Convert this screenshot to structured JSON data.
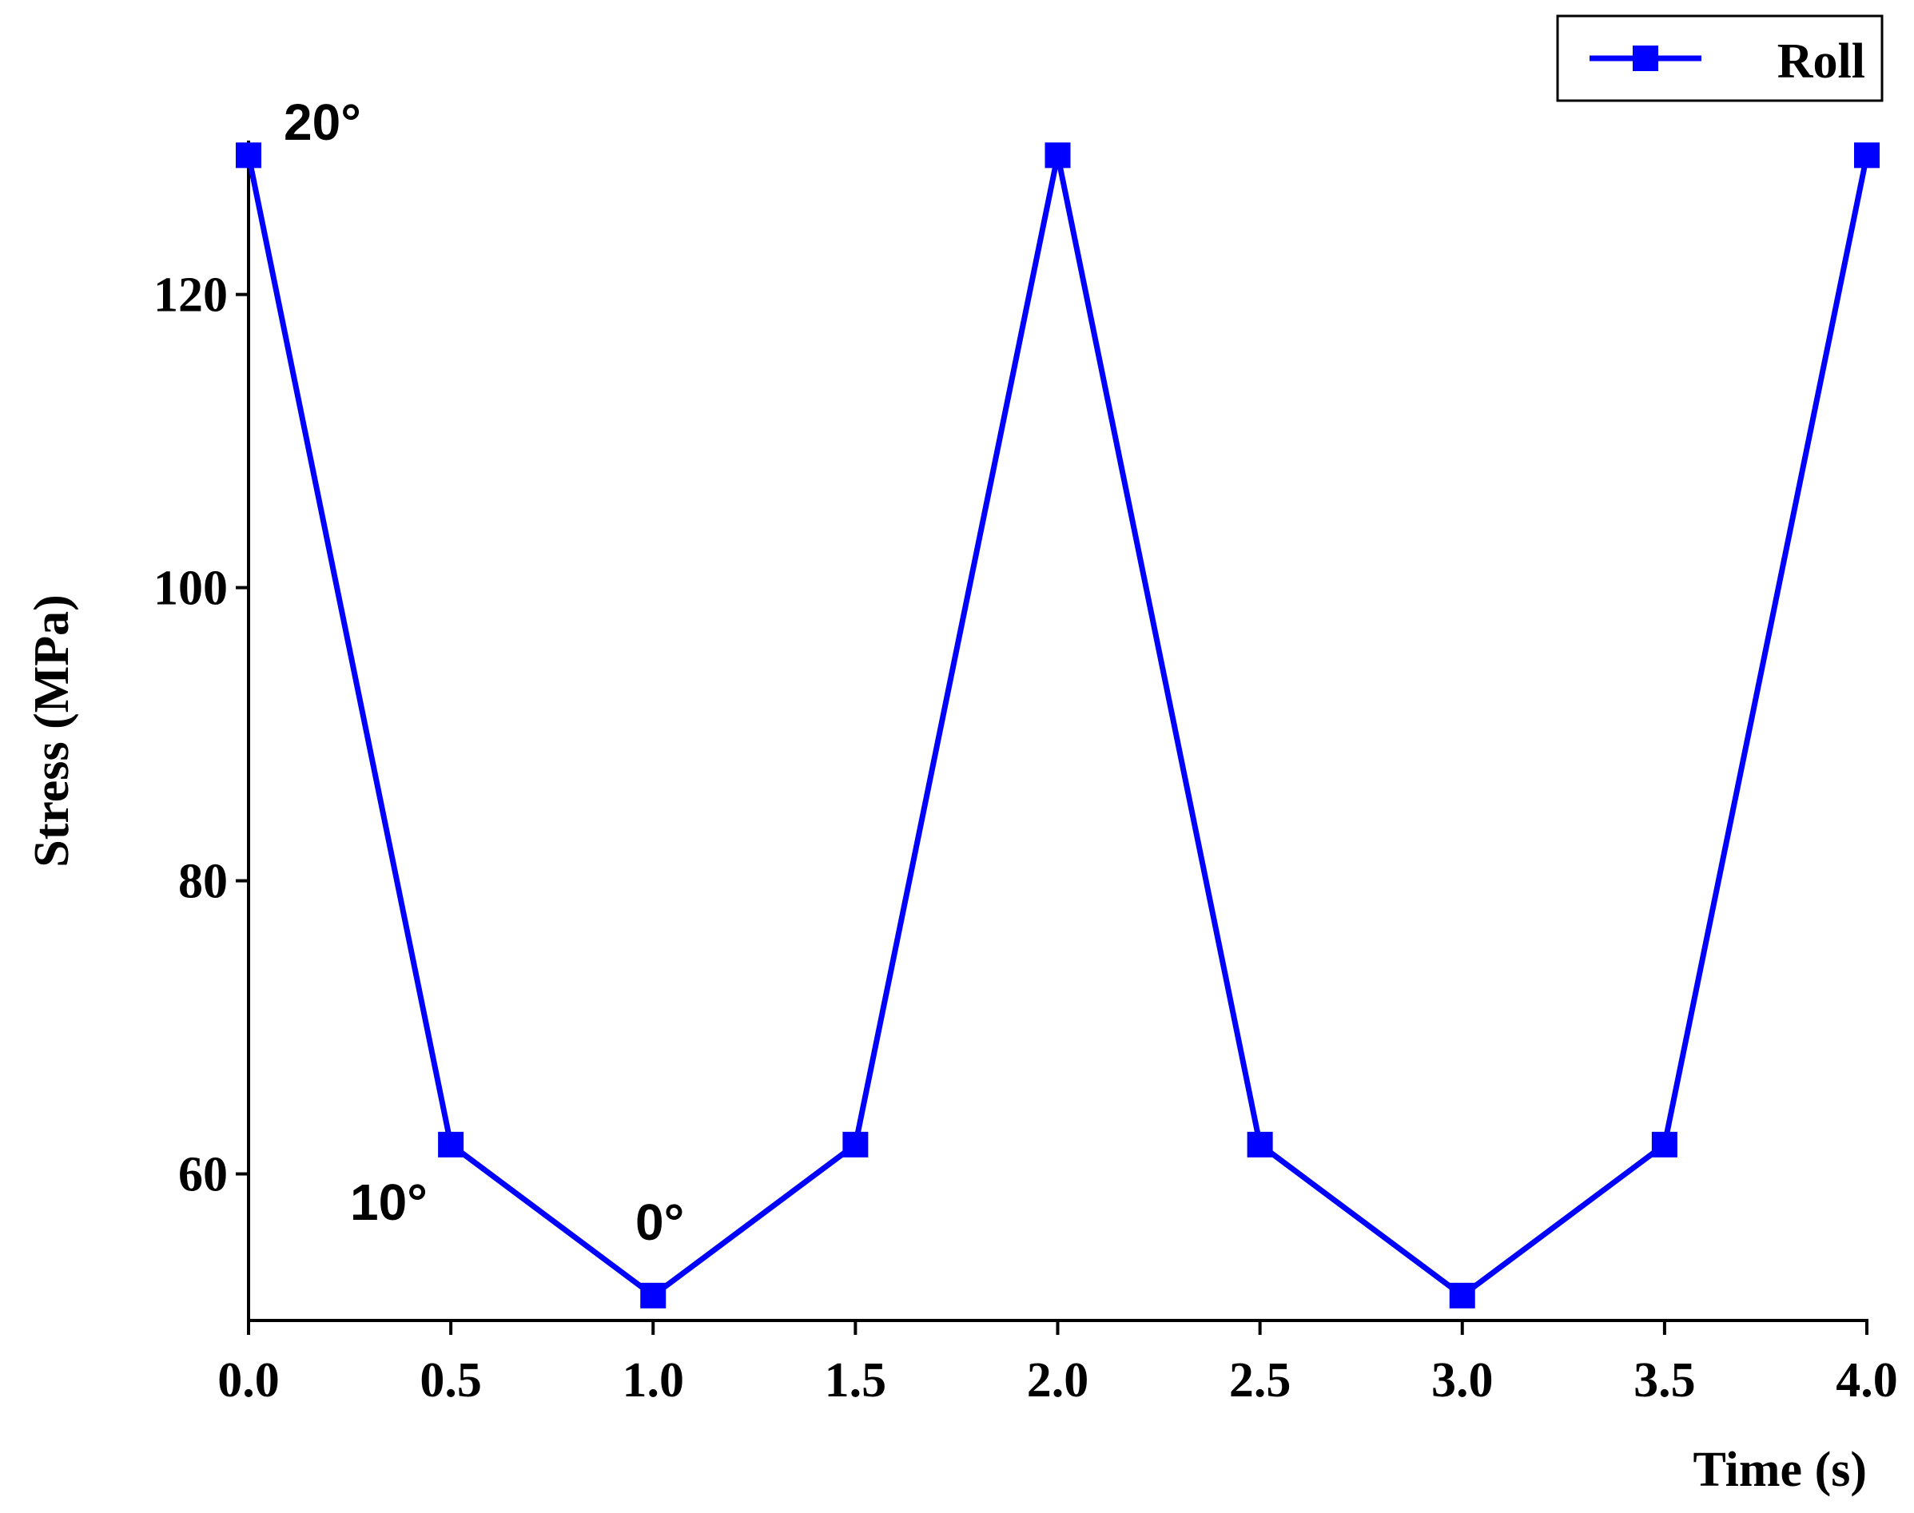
{
  "chart_data": {
    "type": "line",
    "x_label": "Time (s)",
    "y_label": "Stress (MPa)",
    "x": [
      0,
      0.5,
      1,
      1.5,
      2,
      2.5,
      3,
      3.5,
      4
    ],
    "series": [
      {
        "name": "Roll",
        "color": "#0000ff",
        "values": [
          129.5,
          62,
          51.7,
          62,
          129.5,
          62,
          51.7,
          62,
          129.5
        ]
      }
    ],
    "xlim": [
      0,
      4
    ],
    "ylim": [
      50,
      130.5
    ],
    "xticks": [
      {
        "value": 0,
        "label": "0.0"
      },
      {
        "value": 0.5,
        "label": "0.5"
      },
      {
        "value": 1,
        "label": "1.0"
      },
      {
        "value": 1.5,
        "label": "1.5"
      },
      {
        "value": 2,
        "label": "2.0"
      },
      {
        "value": 2.5,
        "label": "2.5"
      },
      {
        "value": 3,
        "label": "3.0"
      },
      {
        "value": 3.5,
        "label": "3.5"
      },
      {
        "value": 4,
        "label": "4.0"
      }
    ],
    "yticks": [
      60,
      80,
      100,
      120
    ],
    "annotations": [
      "20°",
      "10°",
      "0°"
    ],
    "legend": "top-right"
  }
}
